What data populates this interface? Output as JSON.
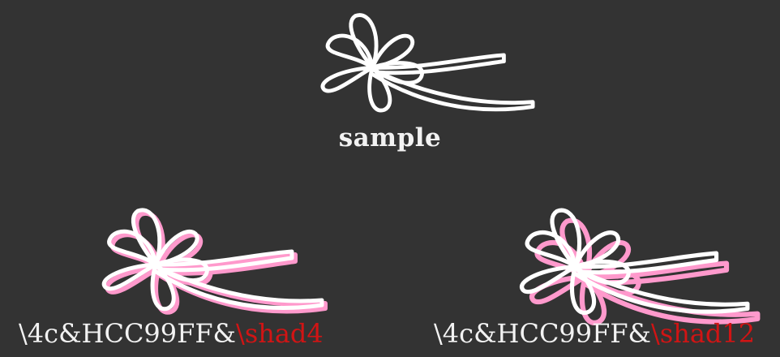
{
  "colors": {
    "background": "#333333",
    "primary": "#ffffff",
    "shadow": "#ff99cc",
    "caption": "#f2f2f2",
    "highlight": "#d11414"
  },
  "icons": {
    "flower": "flower-ribbon-icon"
  },
  "panels": [
    {
      "id": "sample",
      "caption": "sample"
    },
    {
      "id": "shad4",
      "caption_prefix": "\\4c&HCC99FF&",
      "caption_tag": "\\shad4",
      "shadow_offset": 4
    },
    {
      "id": "shad12",
      "caption_prefix": "\\4c&HCC99FF&",
      "caption_tag": "\\shad12",
      "shadow_offset": 12
    }
  ]
}
